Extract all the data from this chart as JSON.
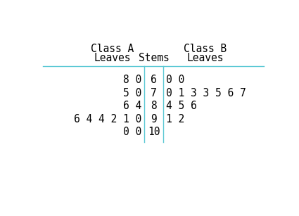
{
  "title_a": "Class A",
  "title_b": "Class B",
  "col_leaves_a": "Leaves",
  "col_stems": "Stems",
  "col_leaves_b": "Leaves",
  "stems": [
    "6",
    "7",
    "8",
    "9",
    "10"
  ],
  "leaves_a": [
    "8 0",
    "5 0",
    "6 4",
    "6 4 4 2 1 0",
    "0 0"
  ],
  "leaves_b": [
    "0 0",
    "0 1 3 3 5 6 7",
    "4 5 6",
    "1 2",
    ""
  ],
  "header_color": "#000000",
  "line_color": "#5bc8d4",
  "bg_color": "#ffffff",
  "font_size": 10.5
}
